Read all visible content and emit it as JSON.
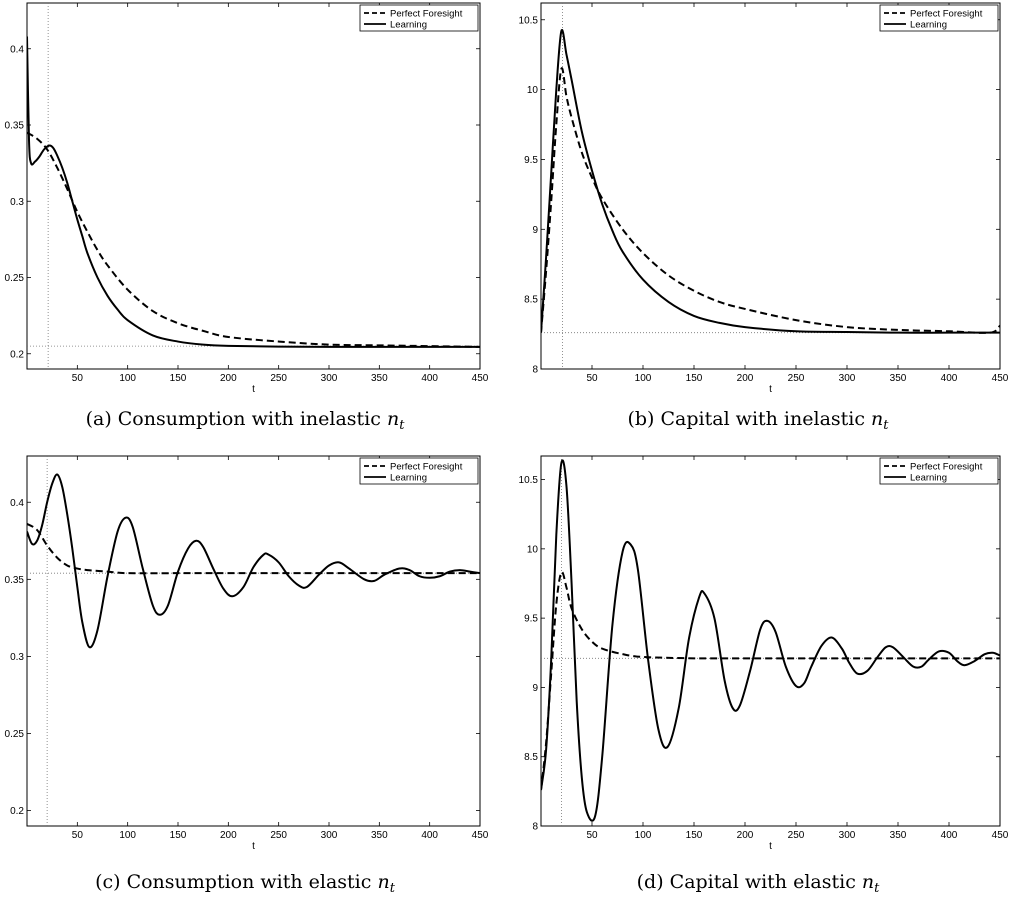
{
  "legend": {
    "items": [
      "Perfect Foresight",
      "Learning"
    ]
  },
  "chart_data": [
    {
      "type": "line",
      "panel": "a",
      "caption_prefix": "(a)",
      "caption_text": "Consumption with inelastic",
      "caption_var": "n",
      "caption_sub": "t",
      "xlabel": "t",
      "xlim": [
        0,
        450
      ],
      "ylim": [
        0.19,
        0.43
      ],
      "x_ticks": [
        50,
        100,
        150,
        200,
        250,
        300,
        350,
        400,
        450
      ],
      "x_tick_labels": [
        "50",
        "100",
        "150",
        "200",
        "250",
        "300",
        "350",
        "400",
        "450"
      ],
      "y_ticks": [
        0.2,
        0.25,
        0.3,
        0.35,
        0.4
      ],
      "y_tick_labels": [
        "0.2",
        "0.25",
        "0.3",
        "0.35",
        "0.4"
      ],
      "ref_x": 21,
      "ref_y": 0.205,
      "series": [
        {
          "name": "Perfect Foresight",
          "style": "dashed",
          "x": [
            0,
            10,
            20,
            30,
            40,
            50,
            60,
            70,
            80,
            100,
            125,
            150,
            175,
            200,
            250,
            300,
            350,
            400,
            450
          ],
          "y": [
            0.345,
            0.341,
            0.334,
            0.322,
            0.308,
            0.293,
            0.28,
            0.268,
            0.258,
            0.242,
            0.228,
            0.22,
            0.215,
            0.211,
            0.208,
            0.206,
            0.2055,
            0.205,
            0.2045
          ]
        },
        {
          "name": "Learning",
          "style": "solid",
          "x": [
            0,
            2,
            4,
            8,
            12,
            17,
            22,
            26,
            30,
            35,
            40,
            45,
            50,
            55,
            60,
            70,
            80,
            90,
            100,
            125,
            150,
            175,
            200,
            250,
            300,
            350,
            400,
            450
          ],
          "y": [
            0.408,
            0.34,
            0.325,
            0.326,
            0.329,
            0.334,
            0.3365,
            0.335,
            0.33,
            0.322,
            0.312,
            0.3,
            0.288,
            0.277,
            0.266,
            0.25,
            0.238,
            0.229,
            0.222,
            0.212,
            0.208,
            0.206,
            0.2052,
            0.2047,
            0.2045,
            0.2045,
            0.2045,
            0.2045
          ]
        }
      ]
    },
    {
      "type": "line",
      "panel": "b",
      "caption_prefix": "(b)",
      "caption_text": "Capital with inelastic",
      "caption_var": "n",
      "caption_sub": "t",
      "xlabel": "t",
      "xlim": [
        0,
        450
      ],
      "ylim": [
        8,
        10.62
      ],
      "x_ticks": [
        50,
        100,
        150,
        200,
        250,
        300,
        350,
        400,
        450
      ],
      "x_tick_labels": [
        "50",
        "100",
        "150",
        "200",
        "250",
        "300",
        "350",
        "400",
        "450"
      ],
      "y_ticks": [
        8,
        8.5,
        9,
        9.5,
        10,
        10.5
      ],
      "y_tick_labels": [
        "8",
        "8.5",
        "9",
        "9.5",
        "10",
        "10.5"
      ],
      "ref_x": 21,
      "ref_y": 8.26,
      "series": [
        {
          "name": "Perfect Foresight",
          "style": "dashed",
          "x": [
            0,
            5,
            10,
            15,
            20,
            25,
            30,
            40,
            50,
            60,
            80,
            100,
            125,
            150,
            175,
            200,
            250,
            300,
            350,
            400,
            440,
            450
          ],
          "y": [
            8.26,
            8.7,
            9.2,
            9.75,
            10.15,
            9.95,
            9.8,
            9.55,
            9.37,
            9.22,
            9.0,
            8.83,
            8.67,
            8.56,
            8.48,
            8.43,
            8.35,
            8.3,
            8.28,
            8.27,
            8.26,
            8.31
          ]
        },
        {
          "name": "Learning",
          "style": "solid",
          "x": [
            0,
            5,
            10,
            15,
            20,
            25,
            30,
            40,
            50,
            60,
            70,
            80,
            100,
            125,
            150,
            175,
            200,
            250,
            300,
            350,
            400,
            450
          ],
          "y": [
            8.26,
            8.8,
            9.4,
            10.0,
            10.42,
            10.25,
            10.07,
            9.7,
            9.42,
            9.18,
            8.99,
            8.84,
            8.64,
            8.48,
            8.38,
            8.33,
            8.3,
            8.27,
            8.265,
            8.26,
            8.26,
            8.26
          ]
        }
      ]
    },
    {
      "type": "line",
      "panel": "c",
      "caption_prefix": "(c)",
      "caption_text": "Consumption with elastic",
      "caption_var": "n",
      "caption_sub": "t",
      "xlabel": "t",
      "xlim": [
        0,
        450
      ],
      "ylim": [
        0.19,
        0.43
      ],
      "x_ticks": [
        50,
        100,
        150,
        200,
        250,
        300,
        350,
        400,
        450
      ],
      "x_tick_labels": [
        "50",
        "100",
        "150",
        "200",
        "250",
        "300",
        "350",
        "400",
        "450"
      ],
      "y_ticks": [
        0.2,
        0.25,
        0.3,
        0.35,
        0.4
      ],
      "y_tick_labels": [
        "0.2",
        "0.25",
        "0.3",
        "0.35",
        "0.4"
      ],
      "ref_x": 20,
      "ref_y": 0.354,
      "series": [
        {
          "name": "Perfect Foresight",
          "style": "dashed",
          "x": [
            0,
            10,
            20,
            30,
            40,
            50,
            60,
            80,
            100,
            150,
            200,
            300,
            450
          ],
          "y": [
            0.386,
            0.382,
            0.372,
            0.364,
            0.359,
            0.357,
            0.356,
            0.355,
            0.354,
            0.354,
            0.354,
            0.354,
            0.354
          ]
        },
        {
          "name": "Learning",
          "style": "solid",
          "x": [
            0,
            5,
            10,
            15,
            20,
            25,
            30,
            35,
            40,
            45,
            50,
            55,
            62,
            70,
            80,
            90,
            98,
            105,
            115,
            125,
            132,
            140,
            150,
            160,
            168,
            175,
            185,
            195,
            204,
            215,
            225,
            235,
            240,
            250,
            260,
            270,
            278,
            290,
            300,
            310,
            320,
            335,
            345,
            355,
            370,
            380,
            390,
            400,
            410,
            420,
            430,
            440,
            450
          ],
          "y": [
            0.381,
            0.373,
            0.375,
            0.385,
            0.4,
            0.412,
            0.418,
            0.41,
            0.392,
            0.37,
            0.345,
            0.322,
            0.306,
            0.317,
            0.352,
            0.381,
            0.39,
            0.384,
            0.357,
            0.333,
            0.327,
            0.333,
            0.355,
            0.37,
            0.375,
            0.371,
            0.357,
            0.344,
            0.339,
            0.345,
            0.358,
            0.366,
            0.366,
            0.361,
            0.352,
            0.346,
            0.345,
            0.353,
            0.359,
            0.361,
            0.357,
            0.35,
            0.349,
            0.353,
            0.357,
            0.356,
            0.352,
            0.351,
            0.352,
            0.355,
            0.356,
            0.355,
            0.354
          ]
        }
      ]
    },
    {
      "type": "line",
      "panel": "d",
      "caption_prefix": "(d)",
      "caption_text": "Capital with elastic",
      "caption_var": "n",
      "caption_sub": "t",
      "xlabel": "t",
      "xlim": [
        0,
        450
      ],
      "ylim": [
        8,
        10.67
      ],
      "x_ticks": [
        50,
        100,
        150,
        200,
        250,
        300,
        350,
        400,
        450
      ],
      "x_tick_labels": [
        "50",
        "100",
        "150",
        "200",
        "250",
        "300",
        "350",
        "400",
        "450"
      ],
      "y_ticks": [
        8,
        8.5,
        9,
        9.5,
        10,
        10.5
      ],
      "y_tick_labels": [
        "8",
        "8.5",
        "9",
        "9.5",
        "10",
        "10.5"
      ],
      "ref_x": 20,
      "ref_y": 9.21,
      "series": [
        {
          "name": "Perfect Foresight",
          "style": "dashed",
          "x": [
            0,
            5,
            10,
            15,
            20,
            25,
            30,
            40,
            50,
            60,
            80,
            100,
            150,
            200,
            300,
            450
          ],
          "y": [
            8.26,
            8.6,
            9.1,
            9.6,
            9.83,
            9.72,
            9.57,
            9.42,
            9.33,
            9.28,
            9.24,
            9.22,
            9.21,
            9.21,
            9.21,
            9.21
          ]
        },
        {
          "name": "Learning",
          "style": "solid",
          "x": [
            0,
            5,
            10,
            15,
            20,
            25,
            30,
            35,
            40,
            45,
            53,
            60,
            70,
            80,
            88,
            95,
            105,
            115,
            124,
            135,
            145,
            155,
            160,
            170,
            180,
            188,
            195,
            205,
            215,
            222,
            230,
            240,
            250,
            258,
            265,
            275,
            285,
            295,
            302,
            310,
            320,
            330,
            338,
            345,
            355,
            365,
            373,
            380,
            390,
            400,
            408,
            415,
            425,
            435,
            443,
            450
          ],
          "y": [
            8.26,
            8.55,
            9.2,
            10.1,
            10.62,
            10.45,
            9.75,
            8.9,
            8.35,
            8.1,
            8.07,
            8.5,
            9.45,
            9.98,
            10.03,
            9.85,
            9.2,
            8.7,
            8.57,
            8.85,
            9.35,
            9.65,
            9.68,
            9.5,
            9.05,
            8.85,
            8.87,
            9.12,
            9.42,
            9.48,
            9.4,
            9.15,
            9.01,
            9.03,
            9.15,
            9.3,
            9.36,
            9.28,
            9.18,
            9.1,
            9.12,
            9.22,
            9.29,
            9.29,
            9.22,
            9.15,
            9.15,
            9.2,
            9.26,
            9.25,
            9.19,
            9.16,
            9.19,
            9.24,
            9.25,
            9.23
          ]
        }
      ]
    }
  ]
}
